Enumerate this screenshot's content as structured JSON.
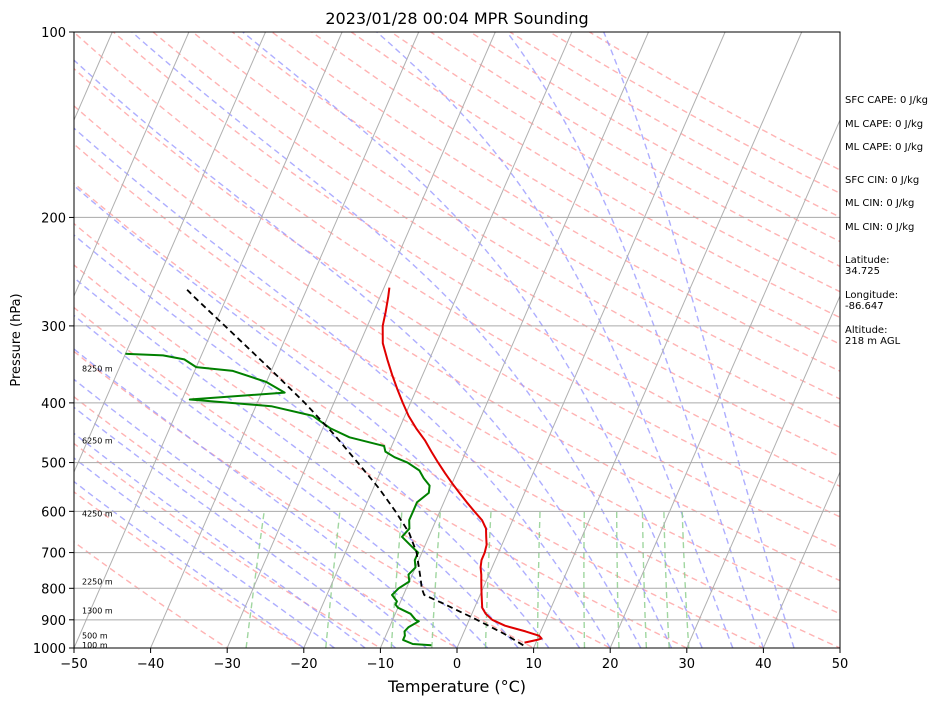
{
  "chart_data": {
    "type": "line",
    "title": "2023/01/28 00:04 MPR Sounding",
    "xlabel": "Temperature (°C)",
    "ylabel": "Pressure (hPa)",
    "xlim": [
      -50,
      50
    ],
    "ylim": [
      1000,
      100
    ],
    "y_scale": "log",
    "x_ticks": [
      -50,
      -40,
      -30,
      -20,
      -10,
      0,
      10,
      20,
      30,
      40,
      50
    ],
    "x_tick_labels": [
      "−50",
      "−40",
      "−30",
      "−20",
      "−10",
      "0",
      "10",
      "20",
      "30",
      "40",
      "50"
    ],
    "y_ticks": [
      1000,
      900,
      800,
      700,
      600,
      500,
      400,
      300,
      200,
      100
    ],
    "y_tick_labels": [
      "1000",
      "900",
      "800",
      "700",
      "600",
      "500",
      "400",
      "300",
      "200",
      "100"
    ],
    "grid": true,
    "colors": {
      "temperature": "#e00000",
      "dewpoint": "#008000",
      "parcel": "#000000",
      "dry_adiabats": "#ff9a9a",
      "moist_adiabats": "#9a9aff",
      "mixing_ratio": "#8fcf8f",
      "isotherms": "#b0b0b0"
    },
    "series": [
      {
        "key": "temperature",
        "pressure": [
          980,
          970,
          965,
          955,
          940,
          920,
          900,
          880,
          860,
          840,
          820,
          800,
          780,
          760,
          740,
          720,
          700,
          680,
          660,
          640,
          620,
          600,
          580,
          560,
          540,
          520,
          500,
          480,
          460,
          440,
          420,
          400,
          380,
          360,
          340,
          320,
          300,
          285,
          270,
          260
        ],
        "values": [
          8.5,
          10.0,
          10.5,
          10.0,
          8.0,
          5.0,
          3.0,
          1.8,
          1.0,
          0.6,
          0.2,
          -0.2,
          -0.6,
          -1.0,
          -1.5,
          -1.8,
          -1.8,
          -2.0,
          -2.5,
          -3.0,
          -4.0,
          -5.5,
          -7.0,
          -8.5,
          -10.0,
          -11.5,
          -13.0,
          -14.5,
          -16.0,
          -17.8,
          -19.5,
          -21.0,
          -22.5,
          -24.0,
          -25.5,
          -27.0,
          -28.0,
          -28.4,
          -28.9,
          -29.3
        ]
      },
      {
        "key": "dewpoint",
        "pressure": [
          990,
          985,
          970,
          955,
          940,
          925,
          905,
          900,
          880,
          860,
          850,
          840,
          820,
          800,
          780,
          760,
          740,
          720,
          700,
          680,
          660,
          640,
          620,
          600,
          580,
          560,
          545,
          530,
          515,
          500,
          490,
          480,
          470,
          455,
          440,
          420,
          405,
          395,
          385,
          370,
          355,
          350,
          340,
          335,
          333
        ],
        "values": [
          -3.5,
          -6.0,
          -7.5,
          -7.5,
          -7.8,
          -7.5,
          -6.5,
          -7.0,
          -8.0,
          -10.0,
          -10.5,
          -10.5,
          -11.5,
          -11.0,
          -10.0,
          -10.5,
          -10.0,
          -10.5,
          -10.5,
          -12.0,
          -13.5,
          -13.0,
          -13.5,
          -13.5,
          -13.5,
          -12.5,
          -12.8,
          -14.0,
          -15.0,
          -17.0,
          -19.0,
          -20.5,
          -21.0,
          -26.0,
          -29.0,
          -32.0,
          -38.0,
          -49.0,
          -37.0,
          -40.0,
          -45.0,
          -50.0,
          -52.0,
          -55.0,
          -60.0
        ]
      },
      {
        "key": "parcel",
        "pressure": [
          990,
          950,
          900,
          850,
          820,
          800,
          775,
          700,
          650,
          600,
          550,
          500,
          450,
          400,
          350,
          300,
          270,
          262
        ],
        "values": [
          8.5,
          5.5,
          1.0,
          -4.0,
          -7.3,
          -8.0,
          -8.6,
          -10.7,
          -12.8,
          -15.8,
          -19.3,
          -23.5,
          -28.2,
          -33.8,
          -40.6,
          -48.6,
          -54.1,
          -55.6
        ]
      }
    ],
    "height_labels": [
      {
        "pressure": 988,
        "text": "100 m"
      },
      {
        "pressure": 955,
        "text": "500 m"
      },
      {
        "pressure": 870,
        "text": "1300 m"
      },
      {
        "pressure": 780,
        "text": "2250 m"
      },
      {
        "pressure": 605,
        "text": "4250 m"
      },
      {
        "pressure": 460,
        "text": "6250 m"
      },
      {
        "pressure": 352,
        "text": "8250 m"
      }
    ]
  },
  "side_panel": {
    "sfc_cape": "SFC CAPE: 0 J/kg",
    "ml_cape": "ML CAPE: 0 J/kg",
    "ml_cape_2": "ML CAPE: 0 J/kg",
    "sfc_cin": "SFC CIN: 0 J/kg",
    "ml_cin": "ML CIN: 0 J/kg",
    "ml_cin_2": "ML CIN: 0 J/kg",
    "latitude_label": "Latitude:",
    "latitude_value": "34.725",
    "longitude_label": "Longitude:",
    "longitude_value": "-86.647",
    "altitude_label": "Altitude:",
    "altitude_value": "218 m AGL"
  }
}
